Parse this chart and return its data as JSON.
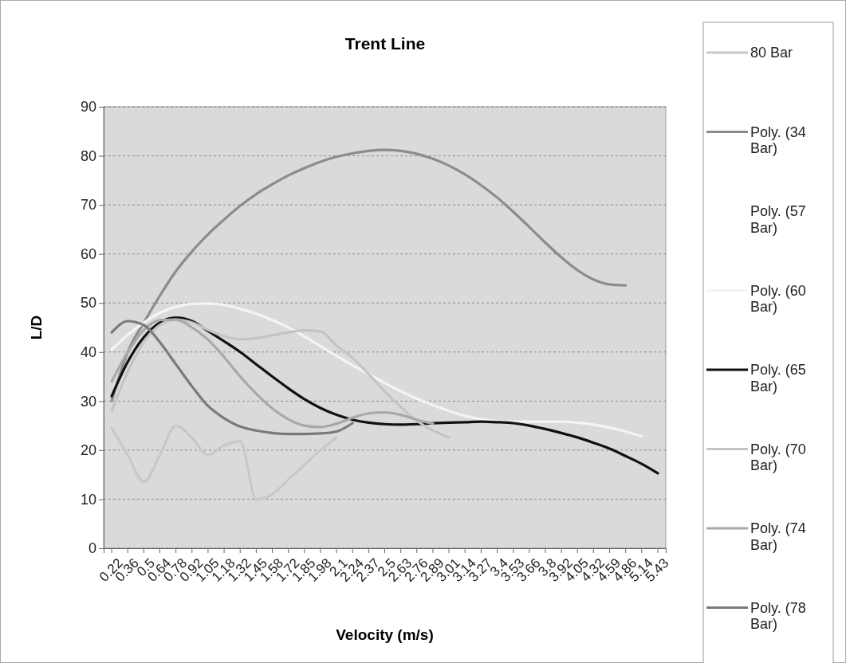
{
  "chart_data": {
    "type": "line",
    "title": "Trent Line",
    "xlabel": "Velocity (m/s)",
    "ylabel": "L/D",
    "categories": [
      "0.22",
      "0.36",
      "0.5",
      "0.64",
      "0.78",
      "0.92",
      "1.05",
      "1.18",
      "1.32",
      "1.45",
      "1.58",
      "1.72",
      "1.85",
      "1.98",
      "2.1",
      "2.24",
      "2.37",
      "2.5",
      "2.63",
      "2.76",
      "2.89",
      "3.01",
      "3.14",
      "3.27",
      "3.4",
      "3.53",
      "3.66",
      "3.8",
      "3.92",
      "4.05",
      "4.32",
      "4.59",
      "4.86",
      "5.14",
      "5.43"
    ],
    "ylim": [
      0,
      90
    ],
    "yticks": [
      0,
      10,
      20,
      30,
      40,
      50,
      60,
      70,
      80,
      90
    ],
    "grid": "y",
    "legend": "right",
    "marker": "none",
    "line_style": "solid",
    "series": [
      {
        "name": "80 Bar",
        "color": "#c8c8c8",
        "values": [
          24.5,
          19,
          13.5,
          19,
          25,
          22.5,
          19,
          21,
          21.8,
          10,
          11,
          14,
          17,
          20,
          22.6,
          null,
          null,
          null,
          null,
          null,
          null,
          null,
          null,
          null,
          null,
          null,
          null,
          null,
          null,
          null,
          null,
          null,
          null,
          null,
          null
        ]
      },
      {
        "name": "Poly. (34 Bar)",
        "color": "#8c8c8c",
        "values": [
          30,
          40,
          46,
          51.5,
          56.5,
          60.5,
          64,
          67,
          69.8,
          72.2,
          74.2,
          76,
          77.5,
          78.8,
          79.8,
          80.5,
          81,
          81.2,
          81,
          80.4,
          79.4,
          78,
          76.2,
          74,
          71.5,
          68.6,
          65.5,
          62.3,
          59.3,
          56.7,
          54.8,
          53.8,
          53.6,
          null,
          null
        ]
      },
      {
        "name": "Poly. (57 Bar)",
        "values": [
          null,
          null,
          null,
          null,
          null,
          null,
          null,
          null,
          null,
          null,
          null,
          null,
          null,
          null,
          null,
          null,
          null,
          null,
          null,
          null,
          null,
          null,
          null,
          null,
          null,
          null,
          null,
          null,
          null,
          null,
          null,
          null,
          null,
          null,
          null
        ]
      },
      {
        "name": "Poly. (60 Bar)",
        "color": "#f4f4f4",
        "values": [
          40.5,
          43.5,
          46,
          48,
          49.2,
          49.8,
          49.9,
          49.6,
          48.8,
          47.8,
          46.5,
          45,
          43.2,
          41.2,
          39.2,
          37.3,
          35.5,
          33.7,
          32,
          30.5,
          29.2,
          28,
          27,
          26.3,
          25.9,
          25.8,
          25.8,
          25.8,
          25.8,
          25.6,
          25.2,
          24.6,
          23.8,
          22.8,
          null
        ]
      },
      {
        "name": "Poly. (65 Bar)",
        "color": "#111111",
        "values": [
          31,
          38,
          43,
          46,
          47,
          46.3,
          44.3,
          42.2,
          40,
          37.5,
          35,
          32.6,
          30.4,
          28.6,
          27.2,
          26.2,
          25.6,
          25.3,
          25.2,
          25.3,
          25.5,
          25.6,
          25.7,
          25.8,
          25.7,
          25.5,
          25,
          24.3,
          23.5,
          22.6,
          21.5,
          20.3,
          18.8,
          17.2,
          15.3
        ]
      },
      {
        "name": "Poly. (70 Bar)",
        "color": "#c4c4c4",
        "values": [
          28,
          36,
          42,
          45.5,
          46.6,
          46,
          44.5,
          43.2,
          42.6,
          42.8,
          43.4,
          44,
          44.4,
          44.2,
          41.3,
          38.8,
          35.5,
          32,
          28.8,
          26,
          24,
          22.6,
          null,
          null,
          null,
          null,
          null,
          null,
          null,
          null,
          null,
          null,
          null,
          null,
          null
        ]
      },
      {
        "name": "Poly. (74 Bar)",
        "color": "#a8a8a8",
        "values": [
          34,
          40,
          44.5,
          46.5,
          46.6,
          45,
          42.5,
          39,
          35,
          31.5,
          28.5,
          26.3,
          25,
          24.7,
          25.4,
          26.6,
          27.5,
          27.7,
          27.2,
          26.2,
          25.4,
          null,
          null,
          null,
          null,
          null,
          null,
          null,
          null,
          null,
          null,
          null,
          null,
          null,
          null
        ]
      },
      {
        "name": "Poly. (78 Bar)",
        "color": "#7a7a7a",
        "values": [
          44,
          46.3,
          45.5,
          42,
          37.5,
          33,
          29,
          26.5,
          24.8,
          24,
          23.5,
          23.3,
          23.3,
          23.4,
          23.8,
          25.5,
          null,
          null,
          null,
          null,
          null,
          null,
          null,
          null,
          null,
          null,
          null,
          null,
          null,
          null,
          null,
          null,
          null,
          null,
          null
        ]
      }
    ]
  }
}
